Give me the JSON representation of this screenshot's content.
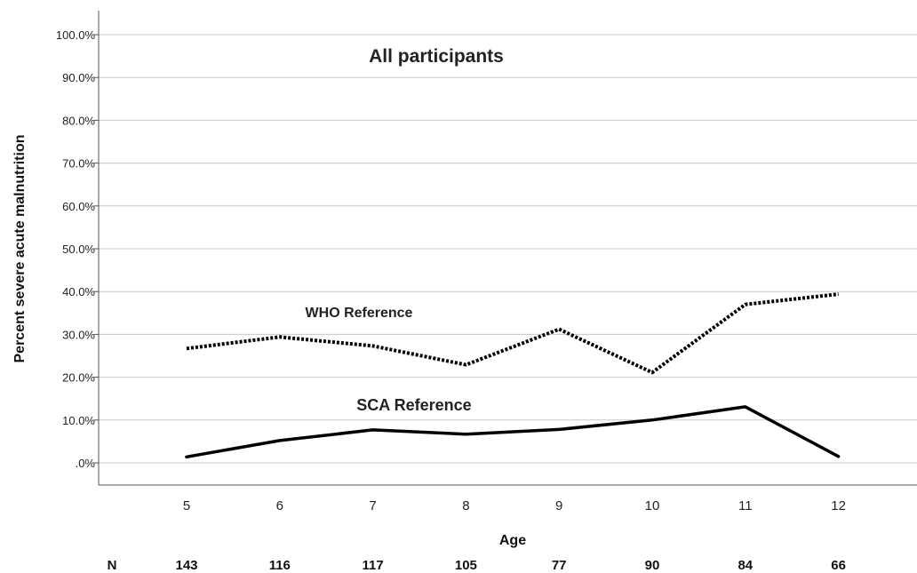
{
  "chart_data": {
    "type": "line",
    "title": "All participants",
    "xlabel": "Age",
    "ylabel": "Percent severe acute malnutrition",
    "x": [
      5,
      6,
      7,
      8,
      9,
      10,
      11,
      12
    ],
    "ylim": [
      0,
      100
    ],
    "y_ticks": [
      "100.0%",
      "90.0%",
      "80.0%",
      "70.0%",
      "60.0%",
      "50.0%",
      "40.0%",
      "30.0%",
      "20.0%",
      "10.0%",
      ".0%"
    ],
    "grid": "horizontal",
    "series": [
      {
        "name": "WHO Reference",
        "style": "dotted",
        "values": [
          26.7,
          29.4,
          27.3,
          22.9,
          31.2,
          21.1,
          37.0,
          39.4
        ]
      },
      {
        "name": "SCA Reference",
        "style": "solid",
        "values": [
          1.4,
          5.2,
          7.7,
          6.7,
          7.8,
          10.0,
          13.1,
          1.5
        ]
      }
    ],
    "n_label": "N",
    "n_values": [
      "143",
      "116",
      "117",
      "105",
      "77",
      "90",
      "84",
      "66"
    ]
  },
  "colors": {
    "line": "#000000",
    "grid": "#c8c8c8",
    "axis": "#555555"
  }
}
